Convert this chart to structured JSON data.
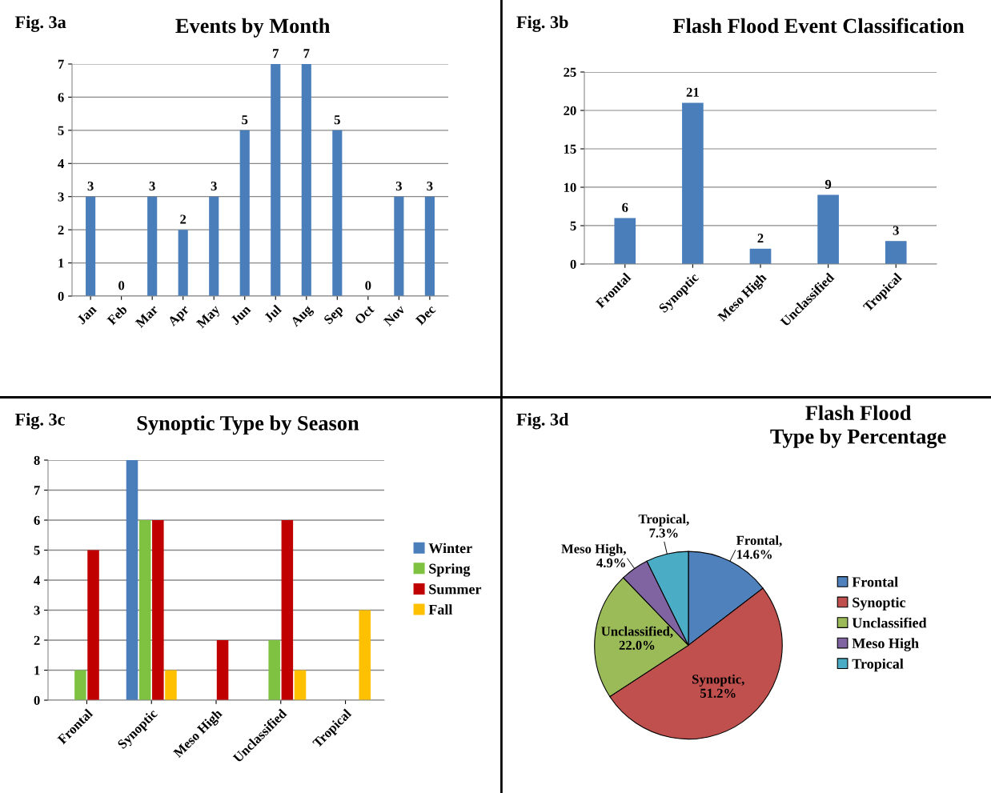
{
  "chart_data": [
    {
      "type": "bar",
      "title": "Events by Month",
      "annotations": [
        "Fig. 3a"
      ],
      "categories": [
        "Jan",
        "Feb",
        "Mar",
        "Apr",
        "May",
        "Jun",
        "Jul",
        "Aug",
        "Sep",
        "Oct",
        "Nov",
        "Dec"
      ],
      "values": [
        3,
        0,
        3,
        2,
        3,
        5,
        7,
        7,
        5,
        0,
        3,
        3
      ],
      "color": "#4a7ebb",
      "ylim": [
        0,
        7
      ],
      "yticks": [
        0,
        1,
        2,
        3,
        4,
        5,
        6,
        7
      ],
      "grid": "y",
      "data_labels": true
    },
    {
      "type": "bar",
      "title": "Flash Flood Event Classification",
      "annotations": [
        "Fig. 3b"
      ],
      "categories": [
        "Frontal",
        "Synoptic",
        "Meso High",
        "Unclassified",
        "Tropical"
      ],
      "values": [
        6,
        21,
        2,
        9,
        3
      ],
      "color": "#4a7ebb",
      "ylim": [
        0,
        25
      ],
      "yticks": [
        0,
        5,
        10,
        15,
        20,
        25
      ],
      "grid": "y",
      "data_labels": true
    },
    {
      "type": "bar",
      "title": "Synoptic Type by Season",
      "annotations": [
        "Fig. 3c"
      ],
      "categories": [
        "Frontal",
        "Synoptic",
        "Meso High",
        "Unclassified",
        "Tropical"
      ],
      "ylim": [
        0,
        8
      ],
      "yticks": [
        0,
        1,
        2,
        3,
        4,
        5,
        6,
        7,
        8
      ],
      "grid": "y",
      "legend": "right",
      "series": [
        {
          "name": "Winter",
          "color": "#4a7ebb",
          "values": [
            0,
            8,
            0,
            0,
            0
          ]
        },
        {
          "name": "Spring",
          "color": "#7fc241",
          "values": [
            1,
            6,
            0,
            2,
            0
          ]
        },
        {
          "name": "Summer",
          "color": "#c00000",
          "values": [
            5,
            6,
            2,
            6,
            0
          ]
        },
        {
          "name": "Fall",
          "color": "#ffc000",
          "values": [
            0,
            1,
            0,
            1,
            3
          ]
        }
      ]
    },
    {
      "type": "pie",
      "title": "Flash Flood\nType by Percentage",
      "annotations": [
        "Fig. 3d"
      ],
      "categories": [
        "Frontal",
        "Synoptic",
        "Unclassified",
        "Meso High",
        "Tropical"
      ],
      "values": [
        14.6,
        51.2,
        22.0,
        4.9,
        7.3
      ],
      "colors": [
        "#4f81bd",
        "#c0504d",
        "#9bbb59",
        "#8064a2",
        "#4bacc6"
      ],
      "value_labels": [
        "Frontal,\n14.6%",
        "Synoptic,\n51.2%",
        "Unclassified,\n22.0%",
        "Meso High,\n4.9%",
        "Tropical,\n7.3%"
      ],
      "legend": "right"
    }
  ]
}
